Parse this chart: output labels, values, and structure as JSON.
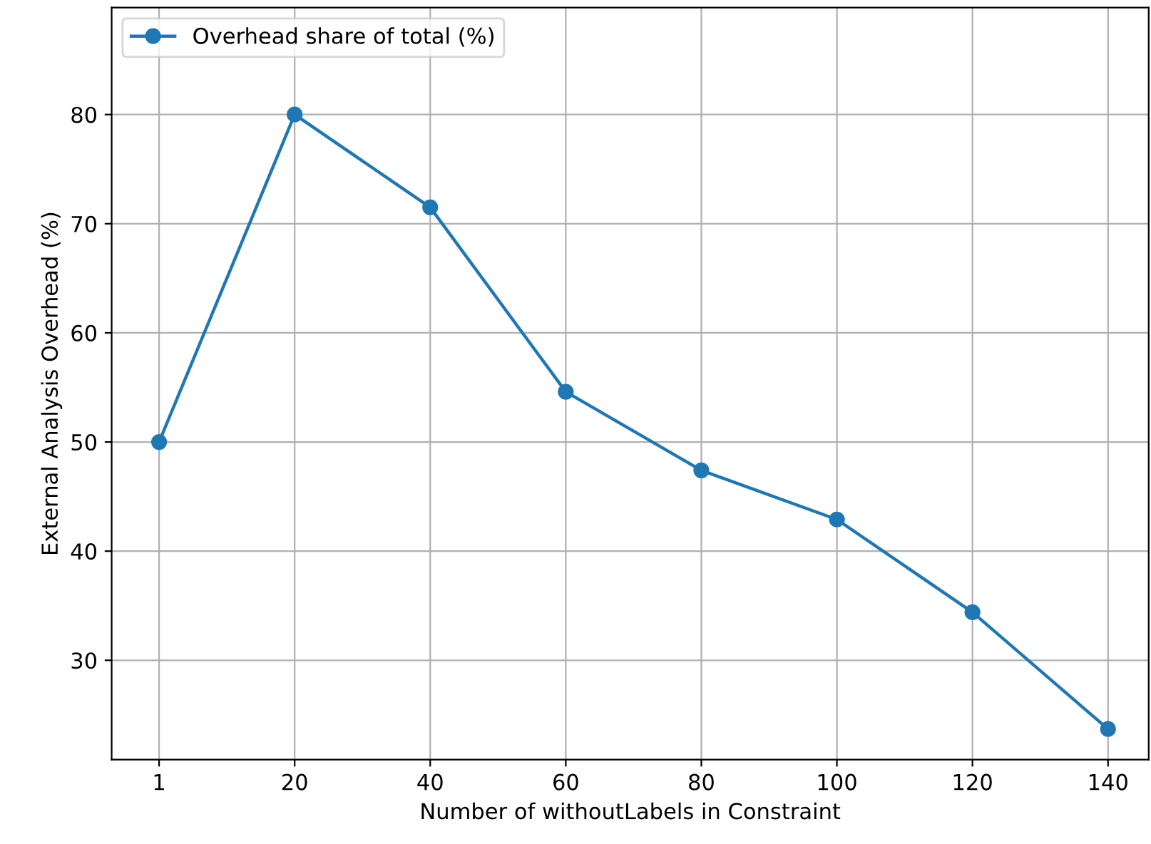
{
  "chart_data": {
    "type": "line",
    "xlabel": "Number of withoutLabels in Constraint",
    "ylabel": "External Analysis Overhead (%)",
    "categories": [
      "1",
      "20",
      "40",
      "60",
      "80",
      "100",
      "120",
      "140"
    ],
    "series": [
      {
        "name": "Overhead share of total (%)",
        "color": "#1f77b4",
        "values": [
          50.0,
          80.0,
          71.5,
          54.6,
          47.4,
          42.9,
          34.4,
          23.7
        ]
      }
    ],
    "ylim": [
      20.9,
      89.8
    ],
    "yticks": [
      30,
      40,
      50,
      60,
      70,
      80
    ],
    "grid": true,
    "legend": "top left",
    "marker": "circle",
    "line_style": "solid"
  }
}
